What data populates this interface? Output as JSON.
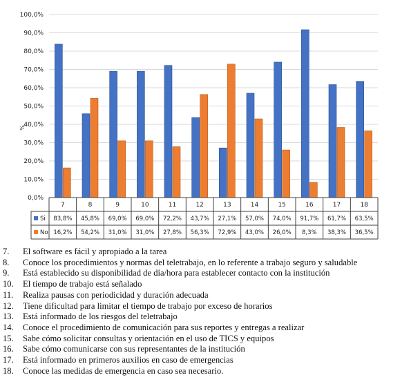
{
  "chart_data": {
    "type": "bar",
    "categories": [
      "7",
      "8",
      "9",
      "10",
      "11",
      "12",
      "13",
      "14",
      "15",
      "16",
      "17",
      "18"
    ],
    "series": [
      {
        "name": "Si",
        "color": "#4472C4",
        "values": [
          83.8,
          45.8,
          69.0,
          69.0,
          72.2,
          43.7,
          27.1,
          57.0,
          74.0,
          91.7,
          61.7,
          63.5
        ],
        "labels": [
          "83,8%",
          "45,8%",
          "69,0%",
          "69,0%",
          "72,2%",
          "43,7%",
          "27,1%",
          "57,0%",
          "74,0%",
          "91,7%",
          "61,7%",
          "63,5%"
        ]
      },
      {
        "name": "No",
        "color": "#ED7D31",
        "values": [
          16.2,
          54.2,
          31.0,
          31.0,
          27.8,
          56.3,
          72.9,
          43.0,
          26.0,
          8.3,
          38.3,
          36.5
        ],
        "labels": [
          "16,2%",
          "54,2%",
          "31,0%",
          "31,0%",
          "27,8%",
          "56,3%",
          "72,9%",
          "43,0%",
          "26,0%",
          "8,3%",
          "38,3%",
          "36,5%"
        ]
      }
    ],
    "ylim": [
      0,
      100
    ],
    "yticks": [
      0,
      10,
      20,
      30,
      40,
      50,
      60,
      70,
      80,
      90,
      100
    ],
    "ytick_labels": [
      "0,0%",
      "10,0%",
      "20,0%",
      "30,0%",
      "40,0%",
      "50,0%",
      "60,0%",
      "70,0%",
      "80,0%",
      "90,0%",
      "100,0%"
    ],
    "ylabel": "%",
    "grid": true,
    "legend": "data-table"
  },
  "legend_items": [
    {
      "num": "7.",
      "text": "El software es fácil y apropiado a la tarea"
    },
    {
      "num": "8.",
      "text": "Conoce los procedimientos y normas del teletrabajo, en lo referente a trabajo seguro y saludable"
    },
    {
      "num": "9.",
      "text": "Está establecido su disponibilidad de día/hora para establecer contacto con la institución"
    },
    {
      "num": "10.",
      "text": "El tiempo de trabajo está señalado"
    },
    {
      "num": "11.",
      "text": "Realiza pausas con periodicidad y duración adecuada"
    },
    {
      "num": "12.",
      "text": "Tiene dificultad para limitar el tiempo de trabajo por exceso de horarios"
    },
    {
      "num": "13.",
      "text": "Está informado de los riesgos del teletrabajo"
    },
    {
      "num": "14.",
      "text": "Conoce el procedimiento de comunicación para sus reportes y entregas a realizar"
    },
    {
      "num": "15.",
      "text": "Sabe cómo solicitar consultas y orientación en el uso de TICS y equipos"
    },
    {
      "num": "16.",
      "text": "Sabe cómo comunicarse con sus representantes de la institución"
    },
    {
      "num": "17.",
      "text": "Está informado en primeros auxilios en caso de emergencias"
    },
    {
      "num": "18.",
      "text": "Conoce las medidas de emergencia en caso sea necesario."
    }
  ]
}
